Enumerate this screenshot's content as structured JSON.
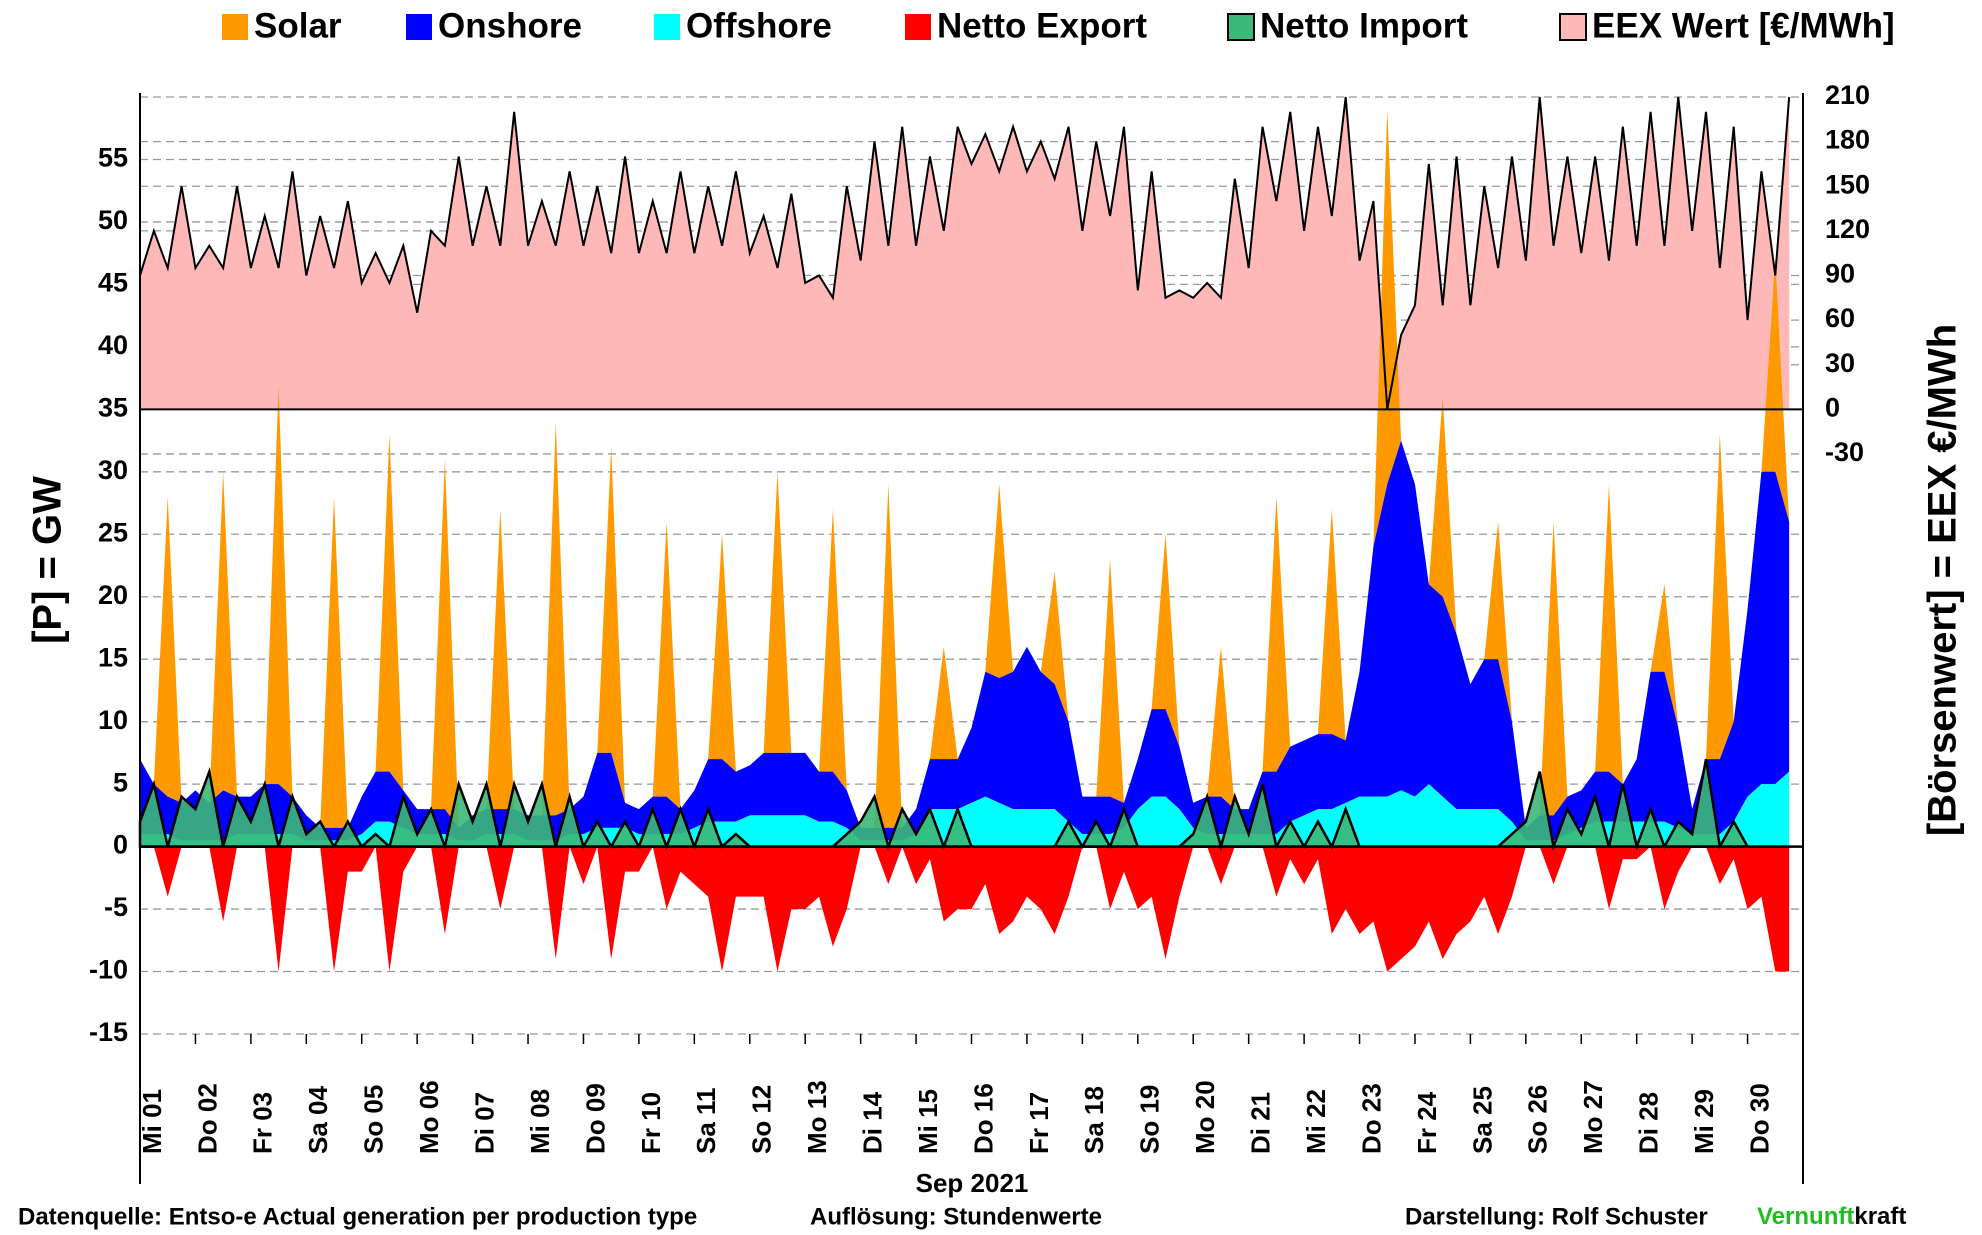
{
  "chart_data": {
    "type": "area",
    "y_label": "[P] = GW",
    "y2_label": "[Börsenwert] =  EEX   €/MWh",
    "x_label": "Sep 2021",
    "categories": [
      "Mi 01",
      "Do 02",
      "Fr 03",
      "Sa 04",
      "So 05",
      "Mo 06",
      "Di 07",
      "Mi 08",
      "Do 09",
      "Fr 10",
      "Sa 11",
      "So 12",
      "Mo 13",
      "Di 14",
      "Mi 15",
      "Do 16",
      "Fr 17",
      "Sa 18",
      "So 19",
      "Mo 20",
      "Di 21",
      "Mi 22",
      "Do 23",
      "Fr 24",
      "Sa 25",
      "So 26",
      "Mo 27",
      "Di 28",
      "Mi 29",
      "Do 30"
    ],
    "ylim": [
      -15,
      60
    ],
    "yticks": [
      -15,
      -10,
      -5,
      0,
      5,
      10,
      15,
      20,
      25,
      30,
      35,
      40,
      45,
      50,
      55
    ],
    "y2lim": [
      -420,
      210
    ],
    "y2ticks": [
      -30,
      0,
      30,
      60,
      90,
      120,
      150,
      180,
      210
    ],
    "grid": true,
    "negative_tick_color": "#ff0000",
    "line_color": "#000000",
    "series": [
      {
        "name": "Solar",
        "color": "#ff9900",
        "stack": true,
        "values": [
          [
            0,
            0,
            24,
            0
          ],
          [
            0,
            0,
            25.5,
            0
          ],
          [
            0,
            0,
            32,
            0
          ],
          [
            0,
            0,
            26.5,
            0
          ],
          [
            0,
            0,
            27,
            0
          ],
          [
            0,
            0,
            28,
            0
          ],
          [
            0,
            0,
            24,
            0
          ],
          [
            0,
            0,
            31.5,
            0
          ],
          [
            0,
            0,
            24.5,
            0
          ],
          [
            0,
            0,
            22,
            0
          ],
          [
            0,
            0,
            18,
            0
          ],
          [
            0,
            0,
            22.5,
            0
          ],
          [
            0,
            0,
            21,
            0
          ],
          [
            0,
            0,
            27.5,
            0
          ],
          [
            0,
            0,
            9,
            0
          ],
          [
            0,
            0,
            15.5,
            0
          ],
          [
            0,
            0,
            9,
            0
          ],
          [
            0,
            0,
            19,
            0
          ],
          [
            0,
            0,
            14,
            0
          ],
          [
            0,
            0,
            12,
            0
          ],
          [
            0,
            0,
            22,
            0
          ],
          [
            0,
            0,
            18,
            0
          ],
          [
            0,
            0,
            30,
            0
          ],
          [
            0,
            0,
            16,
            0
          ],
          [
            0,
            0,
            11,
            0
          ],
          [
            0,
            0,
            23.5,
            0
          ],
          [
            0,
            0,
            23,
            0
          ],
          [
            0,
            0,
            7,
            0
          ],
          [
            0,
            0,
            26,
            0
          ],
          [
            0,
            0,
            17,
            0
          ]
        ]
      },
      {
        "name": "Onshore",
        "color": "#0000ff",
        "stack": true,
        "values": [
          [
            6,
            4,
            3,
            3
          ],
          [
            4,
            3,
            4,
            3
          ],
          [
            3,
            4,
            4,
            3
          ],
          [
            2,
            1,
            1,
            1
          ],
          [
            3,
            4,
            4,
            3
          ],
          [
            2,
            2,
            2,
            1
          ],
          [
            2,
            2,
            2,
            2
          ],
          [
            2,
            2,
            2,
            2
          ],
          [
            3,
            6,
            6,
            2
          ],
          [
            2,
            3,
            3,
            2
          ],
          [
            3,
            5,
            5,
            4
          ],
          [
            4,
            5,
            5,
            5
          ],
          [
            5,
            4,
            4,
            3
          ],
          [
            1,
            1,
            1,
            1
          ],
          [
            2,
            4,
            4,
            4
          ],
          [
            6,
            10,
            10,
            11
          ],
          [
            13,
            11,
            10,
            8
          ],
          [
            3,
            3,
            3,
            2
          ],
          [
            4,
            7,
            7,
            5
          ],
          [
            2,
            3,
            3,
            2
          ],
          [
            2,
            5,
            5,
            6
          ],
          [
            6,
            6,
            6,
            5
          ],
          [
            10,
            20,
            25,
            28
          ],
          [
            25,
            16,
            16,
            14
          ],
          [
            10,
            12,
            12,
            8
          ],
          [
            1,
            2,
            2,
            3
          ],
          [
            3,
            4,
            4,
            3
          ],
          [
            5,
            12,
            12,
            8
          ],
          [
            2,
            6,
            6,
            8
          ],
          [
            15,
            25,
            25,
            20
          ]
        ]
      },
      {
        "name": "Offshore",
        "color": "#00ffff",
        "stack": true,
        "values": [
          [
            1,
            1,
            1,
            0.5
          ],
          [
            0.5,
            0.5,
            0.5,
            1
          ],
          [
            1,
            1,
            1,
            1
          ],
          [
            0.5,
            0.5,
            0.5,
            0.5
          ],
          [
            1,
            2,
            2,
            1.5
          ],
          [
            1,
            1,
            1,
            0.5
          ],
          [
            0.5,
            1,
            1,
            1
          ],
          [
            0.5,
            0.5,
            0.5,
            1
          ],
          [
            1,
            1.5,
            1.5,
            1.5
          ],
          [
            1,
            1,
            1,
            1
          ],
          [
            1.5,
            2,
            2,
            2
          ],
          [
            2.5,
            2.5,
            2.5,
            2.5
          ],
          [
            2.5,
            2,
            2,
            1.5
          ],
          [
            0.5,
            0.5,
            0.5,
            0.5
          ],
          [
            1,
            3,
            3,
            3
          ],
          [
            3.5,
            4,
            3.5,
            3
          ],
          [
            3,
            3,
            3,
            2
          ],
          [
            1,
            1,
            1,
            1.5
          ],
          [
            3,
            4,
            4,
            3
          ],
          [
            1.5,
            1,
            1,
            1
          ],
          [
            1,
            1,
            1,
            2
          ],
          [
            2.5,
            3,
            3,
            3.5
          ],
          [
            4,
            4,
            4,
            4.5
          ],
          [
            4,
            5,
            4,
            3
          ],
          [
            3,
            3,
            3,
            2
          ],
          [
            0.5,
            0.5,
            0.5,
            1
          ],
          [
            1.5,
            2,
            2,
            2
          ],
          [
            2,
            2,
            2,
            1.5
          ],
          [
            1,
            1,
            1,
            2
          ],
          [
            4,
            5,
            5,
            6
          ]
        ]
      },
      {
        "name": "Netto Export",
        "color": "#ff0000",
        "values": [
          [
            0,
            0,
            -4,
            0
          ],
          [
            0,
            0,
            -6,
            0
          ],
          [
            0,
            0,
            -10,
            0
          ],
          [
            0,
            0,
            -10,
            -2
          ],
          [
            -2,
            0,
            -10,
            -2
          ],
          [
            0,
            0,
            -7,
            0
          ],
          [
            0,
            0,
            -5,
            0
          ],
          [
            0,
            0,
            -9,
            0
          ],
          [
            -3,
            0,
            -9,
            -2
          ],
          [
            -2,
            0,
            -5,
            -2
          ],
          [
            -3,
            -4,
            -10,
            -4
          ],
          [
            -4,
            -4,
            -10,
            -5
          ],
          [
            -5,
            -4,
            -8,
            -5
          ],
          [
            0,
            0,
            -3,
            0
          ],
          [
            -3,
            -1,
            -6,
            -5
          ],
          [
            -5,
            -3,
            -7,
            -6
          ],
          [
            -4,
            -5,
            -7,
            -4
          ],
          [
            0,
            0,
            -5,
            -2
          ],
          [
            -5,
            -4,
            -9,
            -4
          ],
          [
            0,
            0,
            -3,
            0
          ],
          [
            0,
            0,
            -4,
            -1
          ],
          [
            -3,
            -1,
            -7,
            -5
          ],
          [
            -7,
            -6,
            -10,
            -9
          ],
          [
            -8,
            -6,
            -9,
            -7
          ],
          [
            -6,
            -4,
            -7,
            -4
          ],
          [
            0,
            0,
            -3,
            0
          ],
          [
            0,
            0,
            -5,
            -1
          ],
          [
            -1,
            0,
            -5,
            -2
          ],
          [
            0,
            0,
            -3,
            -1
          ],
          [
            -5,
            -4,
            -10,
            -10
          ]
        ]
      },
      {
        "name": "Netto Import",
        "color": "#3cb878",
        "values": [
          [
            2,
            5,
            0,
            4
          ],
          [
            3,
            6,
            0,
            4
          ],
          [
            2,
            5,
            0,
            4
          ],
          [
            1,
            2,
            0,
            2
          ],
          [
            0,
            1,
            0,
            4
          ],
          [
            1,
            3,
            0,
            5
          ],
          [
            2,
            5,
            0,
            5
          ],
          [
            2,
            5,
            0,
            4
          ],
          [
            0,
            2,
            0,
            2
          ],
          [
            0,
            3,
            0,
            3
          ],
          [
            0,
            3,
            0,
            1
          ],
          [
            0,
            0,
            0,
            0
          ],
          [
            0,
            0,
            0,
            1
          ],
          [
            2,
            4,
            0,
            3
          ],
          [
            1,
            3,
            0,
            3
          ],
          [
            0,
            0,
            0,
            0
          ],
          [
            0,
            0,
            0,
            2
          ],
          [
            0,
            2,
            0,
            3
          ],
          [
            0,
            0,
            0,
            0
          ],
          [
            1,
            4,
            0,
            4
          ],
          [
            1,
            5,
            0,
            2
          ],
          [
            0,
            2,
            0,
            3
          ],
          [
            0,
            0,
            0,
            0
          ],
          [
            0,
            0,
            0,
            0
          ],
          [
            0,
            0,
            0,
            1
          ],
          [
            2,
            6,
            0,
            3
          ],
          [
            1,
            4,
            0,
            5
          ],
          [
            0,
            3,
            0,
            2
          ],
          [
            1,
            7,
            0,
            2
          ],
          [
            0,
            0,
            0,
            0
          ]
        ]
      },
      {
        "name": "EEX Wert [€/MWh]",
        "color": "#ffb8b8",
        "axis": "y2",
        "values": [
          [
            90,
            120,
            95,
            150
          ],
          [
            95,
            110,
            95,
            150
          ],
          [
            95,
            130,
            95,
            160
          ],
          [
            90,
            130,
            95,
            140
          ],
          [
            85,
            105,
            85,
            110
          ],
          [
            65,
            120,
            110,
            170
          ],
          [
            110,
            150,
            110,
            200
          ],
          [
            110,
            140,
            110,
            160
          ],
          [
            110,
            150,
            105,
            170
          ],
          [
            105,
            140,
            105,
            160
          ],
          [
            105,
            150,
            110,
            160
          ],
          [
            105,
            130,
            95,
            145
          ],
          [
            85,
            90,
            75,
            150
          ],
          [
            100,
            180,
            110,
            190
          ],
          [
            110,
            170,
            120,
            190
          ],
          [
            165,
            185,
            160,
            190
          ],
          [
            160,
            180,
            155,
            190
          ],
          [
            120,
            180,
            130,
            190
          ],
          [
            80,
            160,
            75,
            80
          ],
          [
            75,
            85,
            75,
            155
          ],
          [
            95,
            190,
            140,
            200
          ],
          [
            120,
            190,
            130,
            210
          ],
          [
            100,
            140,
            0,
            50
          ],
          [
            70,
            165,
            70,
            170
          ],
          [
            70,
            150,
            95,
            170
          ],
          [
            100,
            210,
            110,
            170
          ],
          [
            105,
            170,
            100,
            190
          ],
          [
            110,
            200,
            110,
            210
          ],
          [
            120,
            200,
            95,
            190
          ],
          [
            60,
            160,
            90,
            210
          ]
        ]
      }
    ],
    "footer": {
      "source": "Datenquelle: Entso-e  Actual generation per production type",
      "resolution": "Auflösung: Stundenwerte",
      "author": "Darstellung:  Rolf Schuster",
      "brand_green": "Vernunft",
      "brand_color": "#22bb22",
      "brand_rest": "kraft"
    }
  }
}
